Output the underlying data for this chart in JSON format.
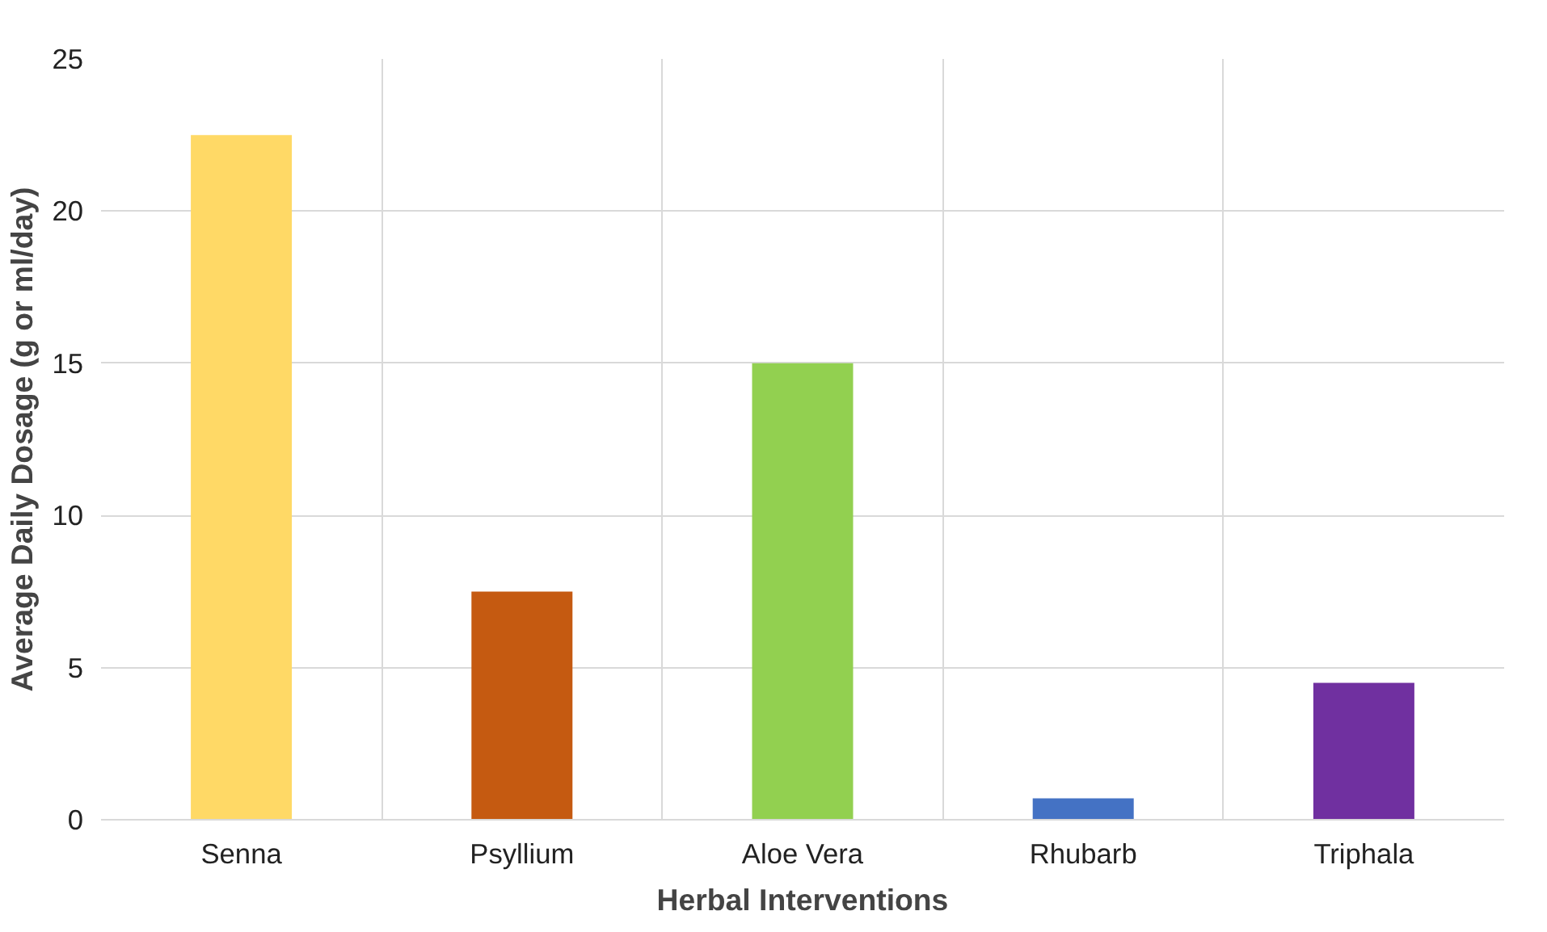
{
  "chart_data": {
    "type": "bar",
    "xlabel": "Herbal Interventions",
    "ylabel": "Average Daily Dosage (g or ml/day)",
    "categories": [
      "Senna",
      "Psyllium",
      "Aloe Vera",
      "Rhubarb",
      "Triphala"
    ],
    "values": [
      22.5,
      7.5,
      15,
      0.7,
      4.5
    ],
    "colors": [
      "#ffd966",
      "#c55a11",
      "#92d050",
      "#4472c4",
      "#7030a0"
    ],
    "ylim": [
      0,
      25
    ],
    "yticks": [
      0,
      5,
      10,
      15,
      20,
      25
    ],
    "grid": true
  }
}
